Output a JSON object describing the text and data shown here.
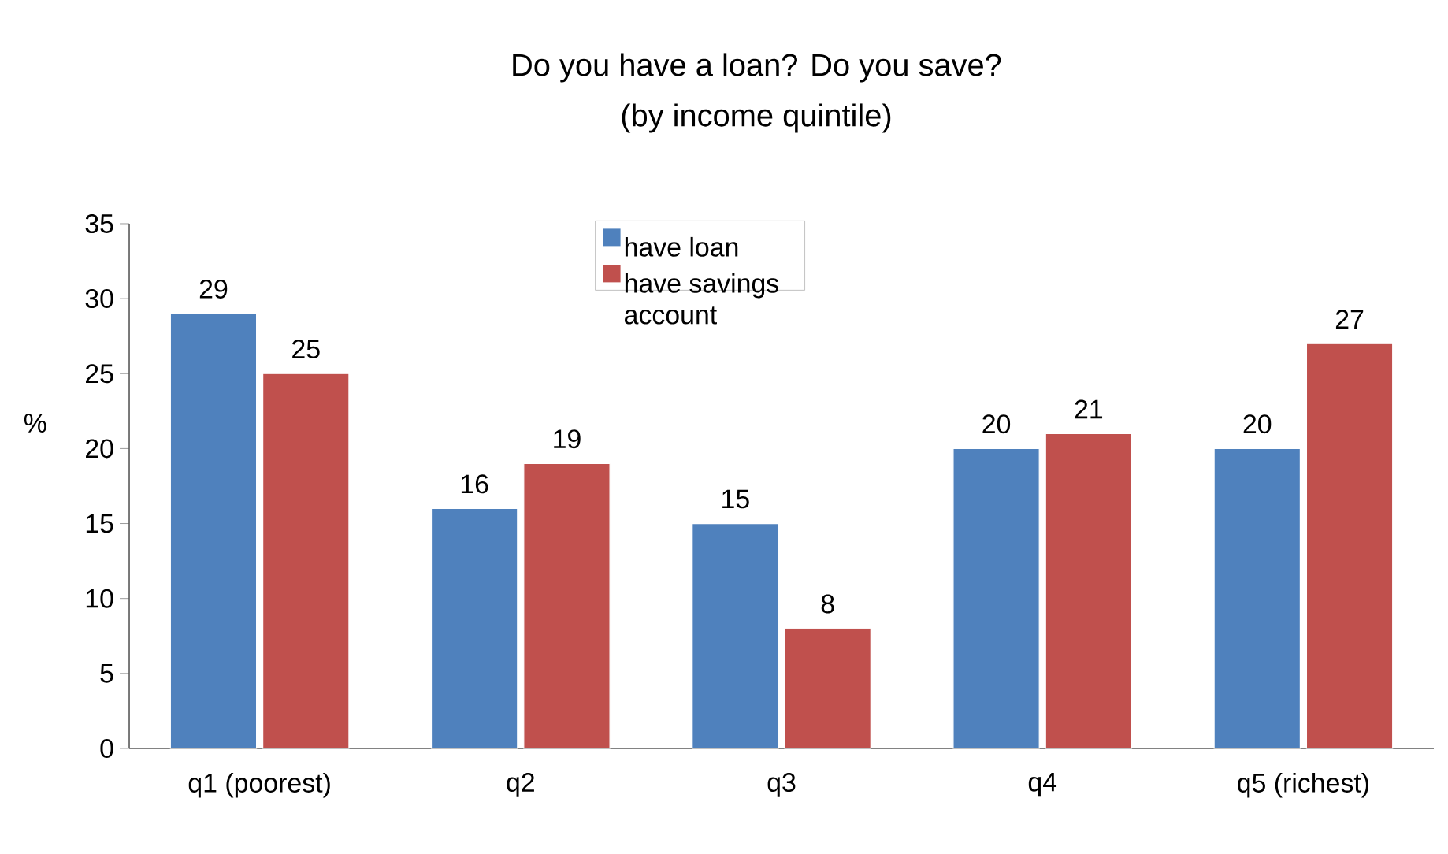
{
  "chart_data": {
    "type": "bar",
    "title": "Do you have a loan? Do you save?",
    "subtitle": "(by income quintile)",
    "ylabel": "%",
    "categories": [
      "q1 (poorest)",
      "q2",
      "q3",
      "q4",
      "q5 (richest)"
    ],
    "series": [
      {
        "name": "have loan",
        "color": "#4f81bd",
        "values": [
          29,
          16,
          15,
          20,
          20
        ]
      },
      {
        "name": "have savings account",
        "color": "#c0504d",
        "values": [
          25,
          19,
          8,
          21,
          27
        ]
      }
    ],
    "ylim": [
      0,
      35
    ],
    "yticks": [
      0,
      5,
      10,
      15,
      20,
      25,
      30,
      35
    ],
    "data_labels": true,
    "legend": "top",
    "grid": false
  }
}
